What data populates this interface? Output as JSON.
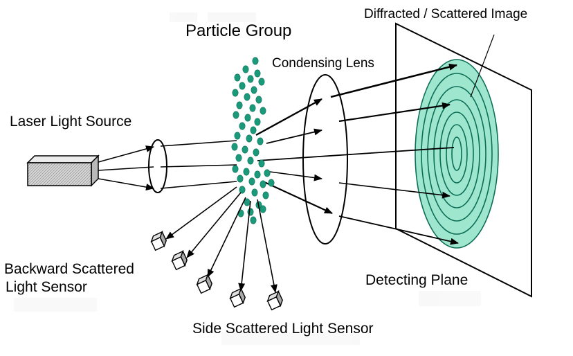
{
  "labels": {
    "particle_group": "Particle Group",
    "condensing_lens": "Condensing Lens",
    "diffracted_image": "Diffracted / Scattered Image",
    "laser_source": "Laser Light Source",
    "backward_sensor_line1": "Backward Scattered",
    "backward_sensor_line2": "Light Sensor",
    "detecting_plane": "Detecting Plane",
    "side_sensor": "Side Scattered Light Sensor"
  },
  "colors": {
    "particle": "#1a9a7a",
    "particle_outline": "#0d6e56",
    "rings_fill": "#9fe6cf",
    "rings_line": "#0d6e56",
    "laser_body": "#c9c9c9",
    "ink": "#000000"
  },
  "icons": {
    "laser": "laser-source-box-icon",
    "sensor": "sensor-cube-icon"
  }
}
